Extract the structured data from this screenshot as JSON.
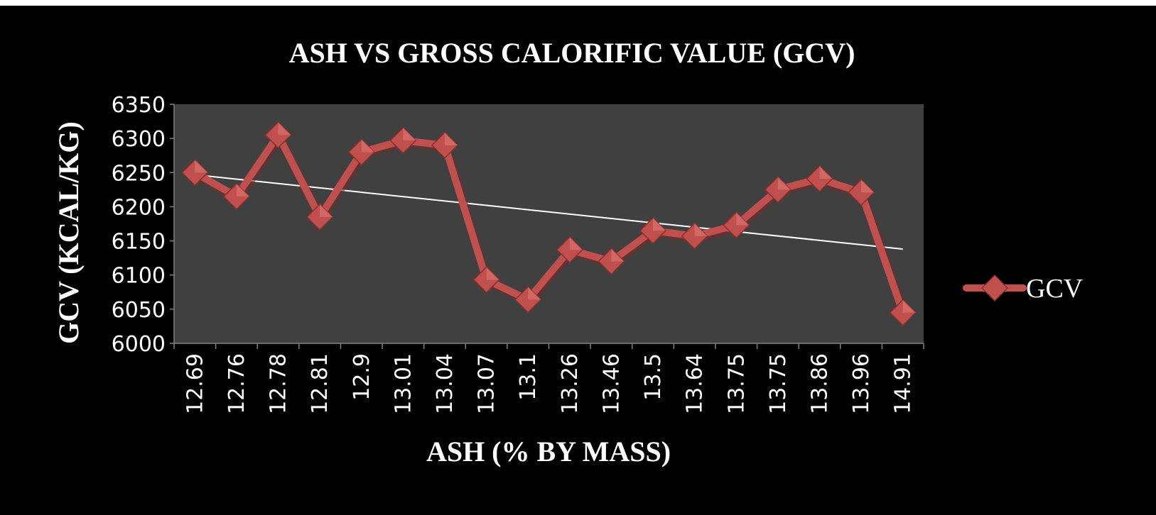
{
  "chart_data": {
    "type": "line",
    "title": "ASH VS GROSS CALORIFIC VALUE (GCV)",
    "xlabel": "ASH (% BY MASS)",
    "ylabel": "GCV (KCAL/KG)",
    "categories": [
      "12.69",
      "12.76",
      "12.78",
      "12.81",
      "12.9",
      "13.01",
      "13.04",
      "13.07",
      "13.1",
      "13.26",
      "13.46",
      "13.5",
      "13.64",
      "13.75",
      "13.75",
      "13.86",
      "13.96",
      "14.91"
    ],
    "series": [
      {
        "name": "GCV",
        "values": [
          6250,
          6215,
          6305,
          6185,
          6280,
          6297,
          6290,
          6093,
          6064,
          6137,
          6120,
          6165,
          6157,
          6173,
          6225,
          6241,
          6221,
          6045
        ],
        "color": "#c0504d"
      }
    ],
    "trendline": {
      "type": "linear",
      "color": "#ffffff"
    },
    "ylim": [
      6000,
      6350
    ],
    "yticks": [
      "6000",
      "6050",
      "6100",
      "6150",
      "6200",
      "6250",
      "6300",
      "6350"
    ],
    "legend_position": "right",
    "plot_background": "#404040",
    "chart_background": "#000000",
    "grid": false
  }
}
